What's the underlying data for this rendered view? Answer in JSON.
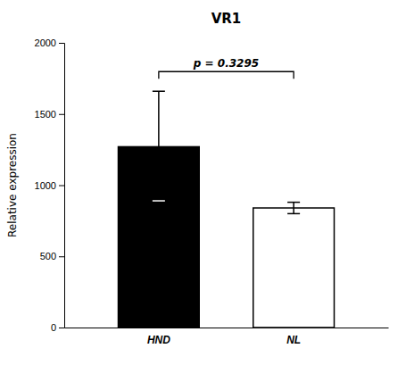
{
  "chart_data": {
    "type": "bar",
    "title": "VR1",
    "ylabel": "Relative expression",
    "categories": [
      "HND",
      "NL"
    ],
    "values": [
      1270,
      840
    ],
    "errors_lower": [
      380,
      40
    ],
    "errors_upper": [
      390,
      40
    ],
    "colors": [
      "black",
      "white"
    ],
    "ylim": [
      0,
      2000
    ],
    "yticks": [
      0,
      500,
      1000,
      1500,
      2000
    ],
    "grid": false,
    "annotations": [
      "p = 0.3295"
    ]
  }
}
